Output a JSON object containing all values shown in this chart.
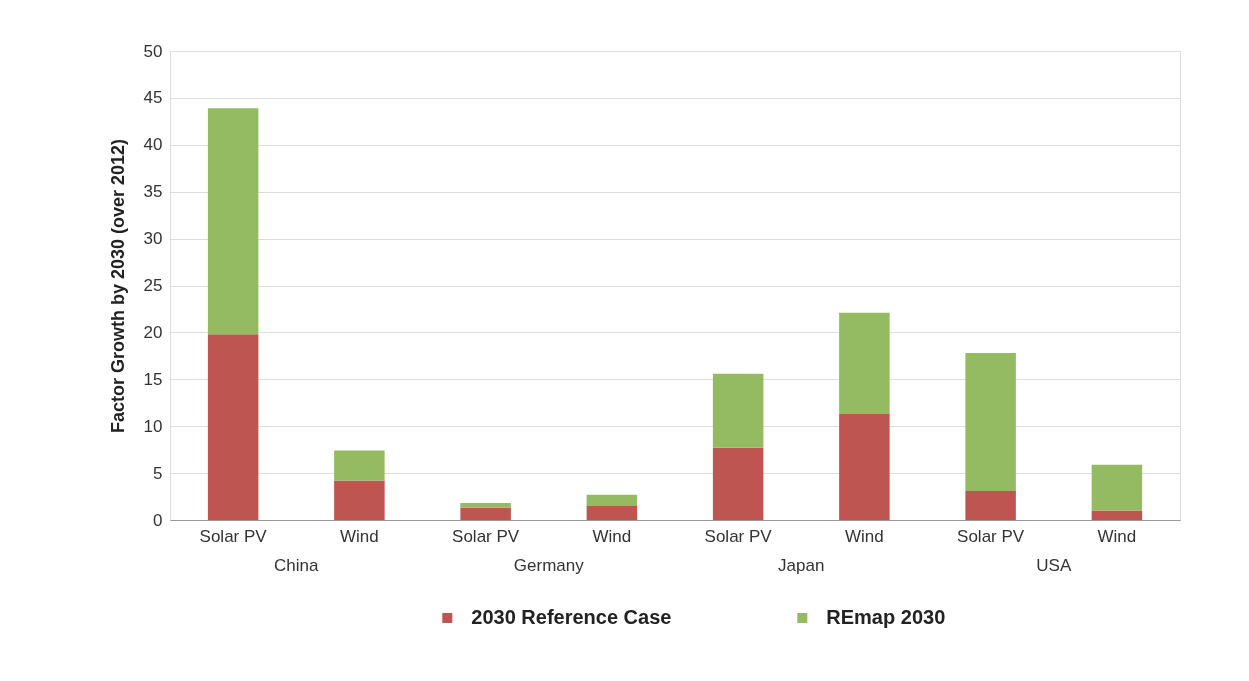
{
  "chart_data": {
    "type": "bar",
    "ylabel": "Factor Growth by 2030 (over 2012)",
    "categories": [
      "Solar PV",
      "Wind",
      "Solar PV",
      "Wind",
      "Solar PV",
      "Wind",
      "Solar PV",
      "Wind"
    ],
    "annotations": [
      "China",
      "Germany",
      "Japan",
      "USA"
    ],
    "stacked": true,
    "series": [
      {
        "name": "2030 Reference Case",
        "color": "#be5551",
        "values": [
          19.8,
          4.2,
          1.3,
          1.5,
          7.7,
          11.3,
          3.1,
          1.0
        ]
      },
      {
        "name": "REmap 2030",
        "color": "#94bb62",
        "values": [
          24.1,
          3.2,
          0.5,
          1.2,
          7.9,
          10.8,
          14.7,
          4.9
        ]
      }
    ],
    "ylim": [
      0,
      50
    ],
    "yticks": [
      0,
      5,
      10,
      15,
      20,
      25,
      30,
      35,
      40,
      45,
      50
    ],
    "grid": "y",
    "legend": "bottom"
  }
}
